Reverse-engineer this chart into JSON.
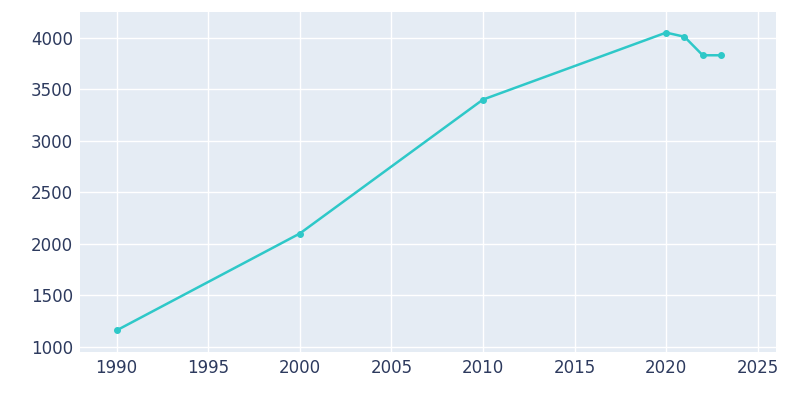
{
  "years": [
    1990,
    2000,
    2010,
    2020,
    2021,
    2022,
    2023
  ],
  "population": [
    1160,
    2100,
    3400,
    4050,
    4010,
    3830,
    3830
  ],
  "line_color": "#2EC8C8",
  "marker": "o",
  "marker_size": 4,
  "line_width": 1.8,
  "background_color": "#FFFFFF",
  "plot_bg_color": "#E5ECF4",
  "grid_color": "#FFFFFF",
  "xlim": [
    1988,
    2026
  ],
  "ylim": [
    950,
    4250
  ],
  "xticks": [
    1990,
    1995,
    2000,
    2005,
    2010,
    2015,
    2020,
    2025
  ],
  "yticks": [
    1000,
    1500,
    2000,
    2500,
    3000,
    3500,
    4000
  ],
  "tick_label_color": "#2D3A5E",
  "tick_fontsize": 12
}
